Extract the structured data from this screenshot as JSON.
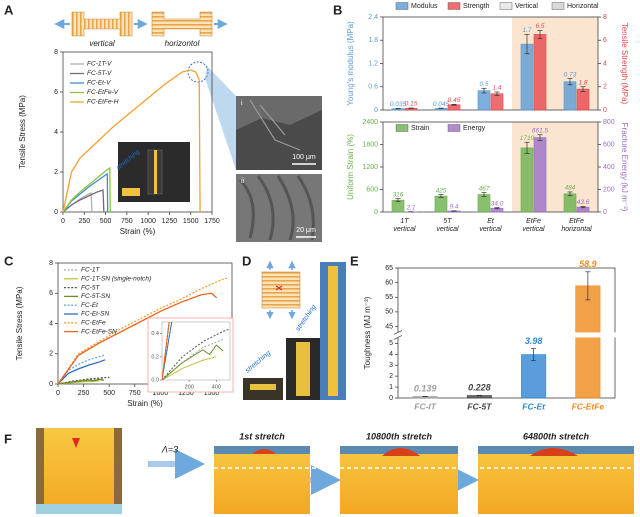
{
  "panels": {
    "a": "A",
    "b": "B",
    "c": "C",
    "d": "D",
    "e": "E",
    "f": "F"
  },
  "panel_a": {
    "shapes": [
      "vertical",
      "horizontol"
    ],
    "inset": "stretching",
    "sem": [
      {
        "index": "i",
        "scale": "100 μm"
      },
      {
        "index": "ii",
        "scale": "20 μm"
      }
    ]
  },
  "panel_d": {
    "labels": [
      "stretching",
      "stretching"
    ]
  },
  "panel_f": {
    "ratio": "Λ=3",
    "stages": [
      "1st stretch",
      "10800th stretch",
      "64800th stretch"
    ]
  },
  "chart_data": [
    {
      "type": "line",
      "xlabel": "Strain (%)",
      "ylabel": "Tensile Stress (MPa)",
      "xlim": [
        0,
        1750
      ],
      "xticks": [
        0,
        250,
        500,
        750,
        1000,
        1250,
        1500,
        1750
      ],
      "ylim": [
        0,
        8
      ],
      "yticks": [
        0,
        2,
        4,
        6,
        8
      ],
      "series": [
        {
          "name": "FC-1T-V",
          "color": "#b0b0b0",
          "x": [
            0,
            100,
            200,
            300,
            330,
            340
          ],
          "values": [
            0,
            0.35,
            0.65,
            0.9,
            0.95,
            0
          ]
        },
        {
          "name": "FC-5T-V",
          "color": "#707070",
          "x": [
            0,
            100,
            200,
            300,
            400,
            470,
            480
          ],
          "values": [
            0,
            0.35,
            0.6,
            0.8,
            1.0,
            1.1,
            0
          ]
        },
        {
          "name": "FC-Et-V",
          "color": "#3a8fd0",
          "x": [
            0,
            100,
            200,
            300,
            400,
            500,
            520,
            525
          ],
          "values": [
            0,
            0.55,
            0.9,
            1.25,
            1.55,
            1.85,
            1.9,
            0
          ]
        },
        {
          "name": "FC-EtFe-V",
          "color": "#8cc43f",
          "x": [
            0,
            100,
            200,
            300,
            400,
            500,
            550,
            555
          ],
          "values": [
            0,
            0.6,
            1.0,
            1.35,
            1.7,
            2.05,
            2.2,
            0
          ]
        },
        {
          "name": "FC-EtFe-H",
          "color": "#f5a030",
          "x": [
            0,
            100,
            200,
            400,
            600,
            800,
            1000,
            1200,
            1400,
            1500,
            1560,
            1600,
            1610
          ],
          "values": [
            0,
            2.0,
            2.7,
            3.5,
            4.3,
            5.0,
            5.7,
            6.4,
            7.0,
            7.1,
            7.0,
            6.6,
            0
          ]
        }
      ]
    },
    {
      "type": "bar",
      "ylabel": "Young's modulus (MPa)",
      "y2label": "Tensile Strength (MPa)",
      "ylim": [
        0,
        2.4
      ],
      "yticks": [
        0,
        0.6,
        1.2,
        1.8,
        2.4
      ],
      "y2lim": [
        0,
        8
      ],
      "y2ticks": [
        0,
        2,
        4,
        6,
        8
      ],
      "legend_extra": [
        {
          "name": "Vertical",
          "color": "#e4e4e4"
        },
        {
          "name": "Horizontal",
          "color": "#d0d0d0"
        }
      ],
      "series": [
        {
          "name": "Modulus",
          "color": "#5b9bd5",
          "values": [
            0.035,
            0.045,
            0.5,
            1.7,
            0.73
          ],
          "errors": [
            0.005,
            0.005,
            0.06,
            0.25,
            0.08
          ]
        },
        {
          "name": "Strength",
          "color": "#e8484d",
          "axis": "y2",
          "values": [
            0.15,
            0.45,
            1.4,
            6.5,
            1.8
          ],
          "errors": [
            0.02,
            0.04,
            0.15,
            0.35,
            0.2
          ]
        }
      ]
    },
    {
      "type": "bar",
      "ylabel": "Uniform Strain (%)",
      "y2label": "Fracture Energy (kJ m⁻³)",
      "categories": [
        "1T",
        "5T",
        "Et",
        "EtFe",
        "EtFe"
      ],
      "orientations": [
        "vertical",
        "vertical",
        "vertical",
        "vertical",
        "horizontal"
      ],
      "ylim": [
        0,
        2400
      ],
      "yticks": [
        0,
        600,
        1200,
        1800,
        2400
      ],
      "y2lim": [
        0,
        800
      ],
      "y2ticks": [
        0,
        200,
        400,
        600,
        800
      ],
      "series": [
        {
          "name": "Strain",
          "color": "#6ab04c",
          "values": [
            316,
            425,
            467,
            1710,
            484
          ],
          "errors": [
            40,
            40,
            50,
            150,
            50
          ]
        },
        {
          "name": "Energy",
          "color": "#9b6fc7",
          "axis": "y2",
          "values": [
            2.1,
            9.4,
            34.0,
            661.5,
            43.6
          ],
          "value_labels": [
            "2.1",
            "9.4",
            "34.0",
            "661.5",
            "43.6"
          ],
          "errors": [
            0.5,
            1.5,
            5,
            25,
            6
          ]
        }
      ]
    },
    {
      "type": "line",
      "xlabel": "Strain (%)",
      "ylabel": "Tensile Stress (MPa)",
      "xlim": [
        0,
        1700
      ],
      "xticks": [
        0,
        250,
        500,
        750,
        1000,
        1250,
        1500
      ],
      "ylim": [
        0,
        8
      ],
      "yticks": [
        0,
        2,
        4,
        6,
        8
      ],
      "series": [
        {
          "name": "FC-1T",
          "color": "#a8a8a8",
          "dash": true,
          "x": [
            0,
            150,
            300,
            450
          ],
          "values": [
            0,
            0.15,
            0.28,
            0.35
          ]
        },
        {
          "name": "FC-1T-SN (single-notch)",
          "color": "#c9c13a",
          "dash": false,
          "x": [
            0,
            150,
            300,
            400
          ],
          "values": [
            0,
            0.1,
            0.17,
            0.2
          ]
        },
        {
          "name": "FC-5T",
          "color": "#555555",
          "dash": true,
          "x": [
            0,
            150,
            300,
            450,
            500
          ],
          "values": [
            0,
            0.2,
            0.33,
            0.42,
            0.44
          ]
        },
        {
          "name": "FC-5T-SN",
          "color": "#6a8f2a",
          "dash": false,
          "x": [
            0,
            150,
            300,
            350,
            400,
            450
          ],
          "values": [
            0,
            0.15,
            0.26,
            0.22,
            0.3,
            0.25
          ]
        },
        {
          "name": "FC-Et",
          "color": "#6aa8e0",
          "dash": true,
          "x": [
            0,
            100,
            200,
            300,
            400,
            450
          ],
          "values": [
            0,
            0.9,
            1.3,
            1.6,
            1.8,
            1.9
          ]
        },
        {
          "name": "FC-Et-SN",
          "color": "#2a6fc0",
          "dash": false,
          "x": [
            0,
            100,
            200,
            300,
            400,
            460
          ],
          "values": [
            0,
            0.7,
            1.0,
            1.25,
            1.45,
            1.6
          ]
        },
        {
          "name": "FC-EtFe",
          "color": "#f5a030",
          "dash": true,
          "x": [
            0,
            200,
            400,
            600,
            800,
            1000,
            1200,
            1400,
            1600,
            1650
          ],
          "values": [
            0,
            2.0,
            2.8,
            3.6,
            4.3,
            5.0,
            5.6,
            6.3,
            6.9,
            7.0
          ]
        },
        {
          "name": "FC-EtFe-SN",
          "color": "#e8651e",
          "dash": false,
          "x": [
            0,
            200,
            400,
            600,
            800,
            1000,
            1200,
            1400,
            1500,
            1550
          ],
          "values": [
            0,
            1.9,
            2.7,
            3.4,
            4.1,
            4.8,
            5.4,
            5.9,
            6.0,
            5.7
          ]
        }
      ],
      "inset": {
        "xlim": [
          0,
          500
        ],
        "xticks": [
          200,
          400
        ],
        "ylim": [
          0,
          0.5
        ],
        "yticks": [
          {
            "value": 0,
            "label": "0.0"
          },
          {
            "value": 0.2,
            "label": "0.2"
          },
          {
            "value": 0.4,
            "label": "0.4"
          }
        ]
      }
    },
    {
      "type": "bar",
      "ylabel": "Toughness (MJ m⁻³)",
      "categories": [
        "FC-IT",
        "FC-5T",
        "FC-Et",
        "FC-EtFe"
      ],
      "values": [
        0.139,
        0.228,
        3.98,
        58.9
      ],
      "errors": [
        0.01,
        0.02,
        0.55,
        4.8
      ],
      "colors": [
        "#9e9e9e",
        "#444444",
        "#2f86d1",
        "#f08a1c"
      ],
      "ylim": [
        0,
        65
      ],
      "ybreak": [
        5,
        45
      ],
      "yticks": [
        0,
        1,
        2,
        3,
        4,
        5,
        45,
        50,
        55,
        60,
        65
      ]
    }
  ]
}
